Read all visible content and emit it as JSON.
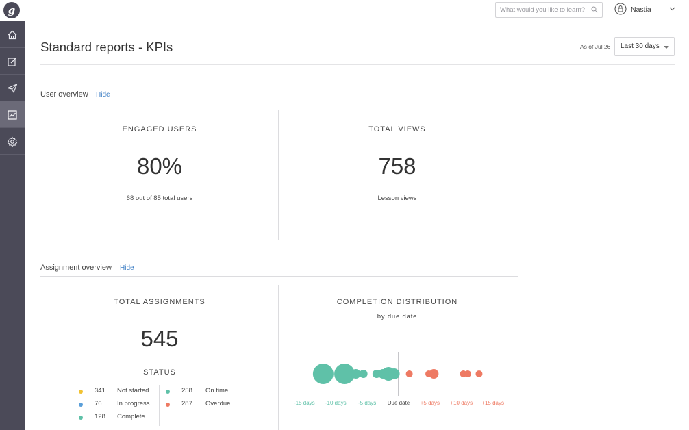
{
  "app": {
    "logo_letter": "g"
  },
  "topbar": {
    "search_placeholder": "What would you like to learn?",
    "user_name": "Nastia"
  },
  "sidebar": {
    "items": [
      {
        "icon": "home-icon",
        "active": false
      },
      {
        "icon": "edit-icon",
        "active": false
      },
      {
        "icon": "send-icon",
        "active": false
      },
      {
        "icon": "chart-icon",
        "active": true
      },
      {
        "icon": "gear-icon",
        "active": false
      }
    ]
  },
  "page": {
    "title": "Standard reports - KPIs",
    "as_of": "As of Jul 26",
    "range_value": "Last 30 days"
  },
  "user_overview": {
    "label": "User overview",
    "hide": "Hide",
    "engaged": {
      "title": "ENGAGED USERS",
      "value": "80%",
      "sub": "68 out of 85 total users"
    },
    "views": {
      "title": "TOTAL VIEWS",
      "value": "758",
      "sub": "Lesson views"
    }
  },
  "assignment_overview": {
    "label": "Assignment overview",
    "hide": "Hide",
    "total": {
      "title": "TOTAL ASSIGNMENTS",
      "value": "545"
    },
    "status_title": "STATUS",
    "status": [
      {
        "count": "341",
        "label": "Not started",
        "color": "#f1c232"
      },
      {
        "count": "76",
        "label": "In progress",
        "color": "#5b9fd9"
      },
      {
        "count": "128",
        "label": "Complete",
        "color": "#5fc1a8"
      }
    ],
    "timing": [
      {
        "count": "258",
        "label": "On time",
        "color": "#5fc1a8"
      },
      {
        "count": "287",
        "label": "Overdue",
        "color": "#ee7a63"
      }
    ],
    "distribution": {
      "title": "COMPLETION DISTRIBUTION",
      "subtitle": "by due date"
    }
  },
  "chart_data": {
    "type": "scatter",
    "title": "COMPLETION DISTRIBUTION",
    "subtitle": "by due date",
    "x_tick_labels": [
      "-15 days",
      "-10 days",
      "-5 days",
      "Due date",
      "+5 days",
      "+10 days",
      "+15 days"
    ],
    "x_range": [
      -17,
      17
    ],
    "colors": {
      "on_time": "#5fc1a8",
      "overdue": "#ee7a63",
      "due_line": "#8c8c94"
    },
    "series": [
      {
        "name": "On time",
        "points": [
          {
            "x": -12,
            "size": 15
          },
          {
            "x": -8.6,
            "size": 15
          },
          {
            "x": -6.8,
            "size": 7
          },
          {
            "x": -5.6,
            "size": 6
          },
          {
            "x": -3.5,
            "size": 6
          },
          {
            "x": -2.5,
            "size": 7
          },
          {
            "x": -1.6,
            "size": 10
          },
          {
            "x": -0.7,
            "size": 8
          }
        ]
      },
      {
        "name": "Overdue",
        "points": [
          {
            "x": 1.7,
            "size": 5
          },
          {
            "x": 4.8,
            "size": 5
          },
          {
            "x": 5.6,
            "size": 7
          },
          {
            "x": 10.3,
            "size": 5
          },
          {
            "x": 11.0,
            "size": 5
          },
          {
            "x": 12.8,
            "size": 5
          }
        ]
      }
    ]
  }
}
